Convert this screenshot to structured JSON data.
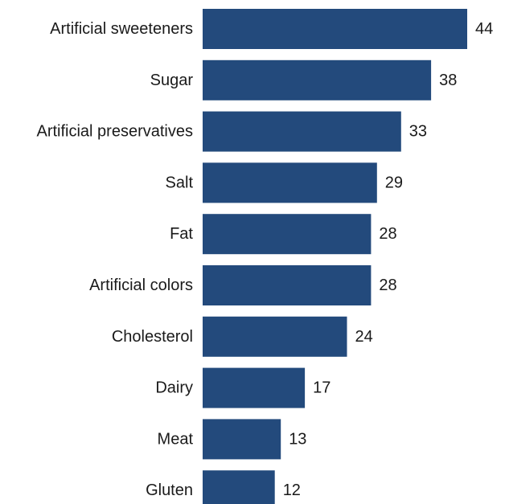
{
  "chart_data": {
    "type": "bar",
    "orientation": "horizontal",
    "categories": [
      "Artificial sweeteners",
      "Sugar",
      "Artificial preservatives",
      "Salt",
      "Fat",
      "Artificial colors",
      "Cholesterol",
      "Dairy",
      "Meat",
      "Gluten"
    ],
    "values": [
      44,
      38,
      33,
      29,
      28,
      28,
      24,
      17,
      13,
      12
    ],
    "xlim": [
      0,
      44
    ],
    "bar_color": "#234a7c",
    "grid": false,
    "legend": "none"
  }
}
